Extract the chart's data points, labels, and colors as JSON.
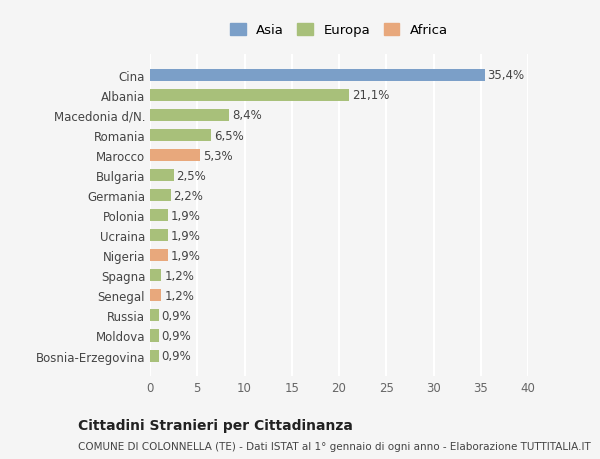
{
  "categories": [
    "Bosnia-Erzegovina",
    "Moldova",
    "Russia",
    "Senegal",
    "Spagna",
    "Nigeria",
    "Ucraina",
    "Polonia",
    "Germania",
    "Bulgaria",
    "Marocco",
    "Romania",
    "Macedonia d/N.",
    "Albania",
    "Cina"
  ],
  "values": [
    0.9,
    0.9,
    0.9,
    1.2,
    1.2,
    1.9,
    1.9,
    1.9,
    2.2,
    2.5,
    5.3,
    6.5,
    8.4,
    21.1,
    35.4
  ],
  "labels": [
    "0,9%",
    "0,9%",
    "0,9%",
    "1,2%",
    "1,2%",
    "1,9%",
    "1,9%",
    "1,9%",
    "2,2%",
    "2,5%",
    "5,3%",
    "6,5%",
    "8,4%",
    "21,1%",
    "35,4%"
  ],
  "colors": [
    "#a8c07a",
    "#a8c07a",
    "#a8c07a",
    "#e8a87c",
    "#a8c07a",
    "#e8a87c",
    "#a8c07a",
    "#a8c07a",
    "#a8c07a",
    "#a8c07a",
    "#e8a87c",
    "#a8c07a",
    "#a8c07a",
    "#a8c07a",
    "#7b9fc8"
  ],
  "legend": [
    {
      "label": "Asia",
      "color": "#7b9fc8"
    },
    {
      "label": "Europa",
      "color": "#a8c07a"
    },
    {
      "label": "Africa",
      "color": "#e8a87c"
    }
  ],
  "xlim": [
    0,
    40
  ],
  "xticks": [
    0,
    5,
    10,
    15,
    20,
    25,
    30,
    35,
    40
  ],
  "title": "Cittadini Stranieri per Cittadinanza",
  "subtitle": "COMUNE DI COLONNELLA (TE) - Dati ISTAT al 1° gennaio di ogni anno - Elaborazione TUTTITALIA.IT",
  "bg_color": "#f5f5f5",
  "grid_color": "#ffffff",
  "bar_height": 0.6
}
